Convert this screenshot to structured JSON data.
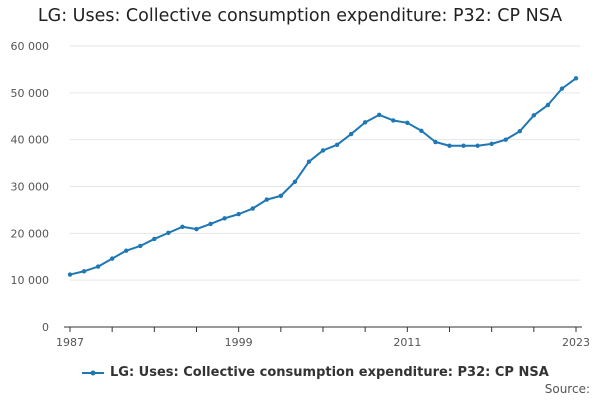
{
  "page": {
    "title": "LG: Uses: Collective consumption expenditure: P32: CP NSA",
    "source_label": "Source:"
  },
  "colors": {
    "series": "#1f77b4",
    "grid": "#e6e6e6",
    "axis": "#333333"
  },
  "chart_data": {
    "type": "line",
    "title": "LG: Uses: Collective consumption expenditure: P32: CP NSA",
    "xlabel": "",
    "ylabel": "",
    "ylim": [
      0,
      60000
    ],
    "xlim": [
      1987,
      2023
    ],
    "grid": true,
    "legend_position": "bottom",
    "y_ticks": [
      {
        "value": 0,
        "label": "0"
      },
      {
        "value": 10000,
        "label": "10 000"
      },
      {
        "value": 20000,
        "label": "20 000"
      },
      {
        "value": 30000,
        "label": "30 000"
      },
      {
        "value": 40000,
        "label": "40 000"
      },
      {
        "value": 50000,
        "label": "50 000"
      },
      {
        "value": 60000,
        "label": "60 000"
      }
    ],
    "x_tick_marks": [
      1987,
      1990,
      1993,
      1996,
      1999,
      2002,
      2005,
      2008,
      2011,
      2014,
      2017,
      2020,
      2023
    ],
    "x_tick_labels": [
      {
        "value": 1987,
        "label": "1987"
      },
      {
        "value": 1999,
        "label": "1999"
      },
      {
        "value": 2011,
        "label": "2011"
      },
      {
        "value": 2023,
        "label": "2023"
      }
    ],
    "series": [
      {
        "name": "LG: Uses: Collective consumption expenditure: P32: CP NSA",
        "x": [
          1987,
          1988,
          1989,
          1990,
          1991,
          1992,
          1993,
          1994,
          1995,
          1996,
          1997,
          1998,
          1999,
          2000,
          2001,
          2002,
          2003,
          2004,
          2005,
          2006,
          2007,
          2008,
          2009,
          2010,
          2011,
          2012,
          2013,
          2014,
          2015,
          2016,
          2017,
          2018,
          2019,
          2020,
          2021,
          2022,
          2023
        ],
        "values": [
          11200,
          11900,
          12900,
          14600,
          16300,
          17300,
          18800,
          20100,
          21400,
          20900,
          22000,
          23200,
          24100,
          25300,
          27200,
          28000,
          31000,
          35300,
          37700,
          38900,
          41200,
          43700,
          45300,
          44100,
          43600,
          41900,
          39500,
          38700,
          38700,
          38700,
          39100,
          40000,
          41800,
          45200,
          47400,
          50900,
          53100
        ]
      }
    ]
  }
}
